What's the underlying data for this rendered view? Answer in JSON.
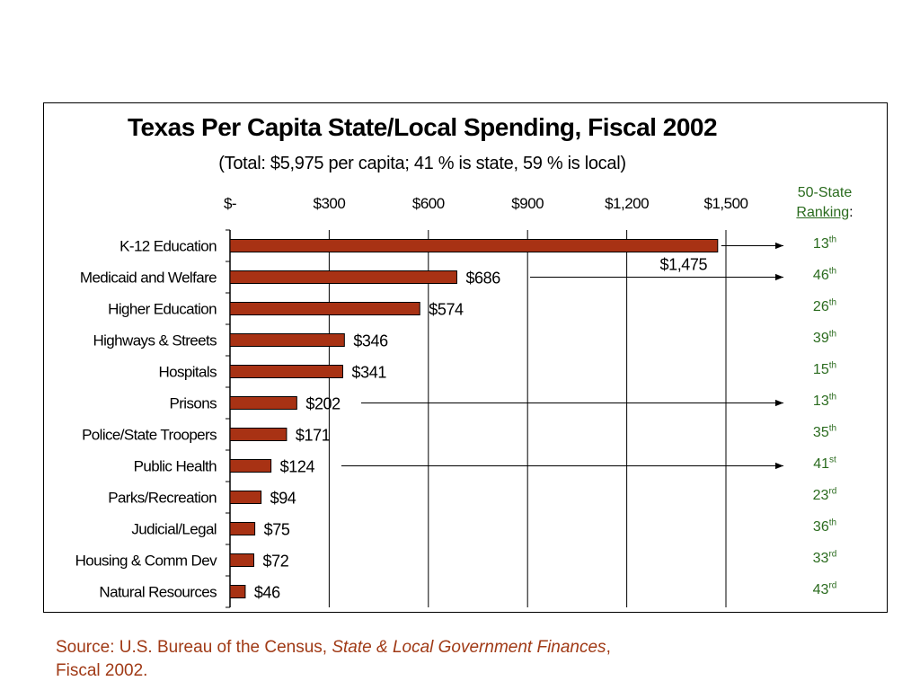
{
  "chart_data": {
    "type": "bar",
    "orientation": "horizontal",
    "title": "Texas Per Capita State/Local Spending, Fiscal 2002",
    "subtitle": "(Total: $5,975 per capita; 41 % is state, 59 % is local)",
    "categories": [
      "K-12 Education",
      "Medicaid and Welfare",
      "Higher Education",
      "Highways & Streets",
      "Hospitals",
      "Prisons",
      "Police/State Troopers",
      "Public Health",
      "Parks/Recreation",
      "Judicial/Legal",
      "Housing & Comm Dev",
      "Natural Resources"
    ],
    "values": [
      1475,
      686,
      574,
      346,
      341,
      202,
      171,
      124,
      94,
      75,
      72,
      46
    ],
    "value_labels": [
      "$1,475",
      "$686",
      "$574",
      "$346",
      "$341",
      "$202",
      "$171",
      "$124",
      "$94",
      "$75",
      "$72",
      "$46"
    ],
    "xlim": [
      0,
      1500
    ],
    "x_ticks": [
      0,
      300,
      600,
      900,
      1200,
      1500
    ],
    "x_tick_labels": [
      "$-",
      "$300",
      "$600",
      "$900",
      "$1,200",
      "$1,500"
    ],
    "x_axis_position": "top",
    "grid": true,
    "bar_color": "#a83214",
    "legend": "none",
    "ranking": {
      "header_line1": "50-State",
      "header_line2": "Ranking",
      "header_colon": ":",
      "items": [
        {
          "num": "13",
          "suffix": "th"
        },
        {
          "num": "46",
          "suffix": "th"
        },
        {
          "num": "26",
          "suffix": "th"
        },
        {
          "num": "39",
          "suffix": "th"
        },
        {
          "num": "15",
          "suffix": "th"
        },
        {
          "num": "13",
          "suffix": "th"
        },
        {
          "num": "35",
          "suffix": "th"
        },
        {
          "num": "41",
          "suffix": "st"
        },
        {
          "num": "23",
          "suffix": "rd"
        },
        {
          "num": "36",
          "suffix": "th"
        },
        {
          "num": "33",
          "suffix": "rd"
        },
        {
          "num": "43",
          "suffix": "rd"
        }
      ],
      "arrow_rows": [
        0,
        1,
        5,
        7
      ],
      "color": "#2a6b1e"
    }
  },
  "source": {
    "prefix": "Source: U.S. Bureau of the Census, ",
    "italic": "State & Local Government Finances",
    "suffix": ",",
    "line2": "Fiscal 2002."
  }
}
